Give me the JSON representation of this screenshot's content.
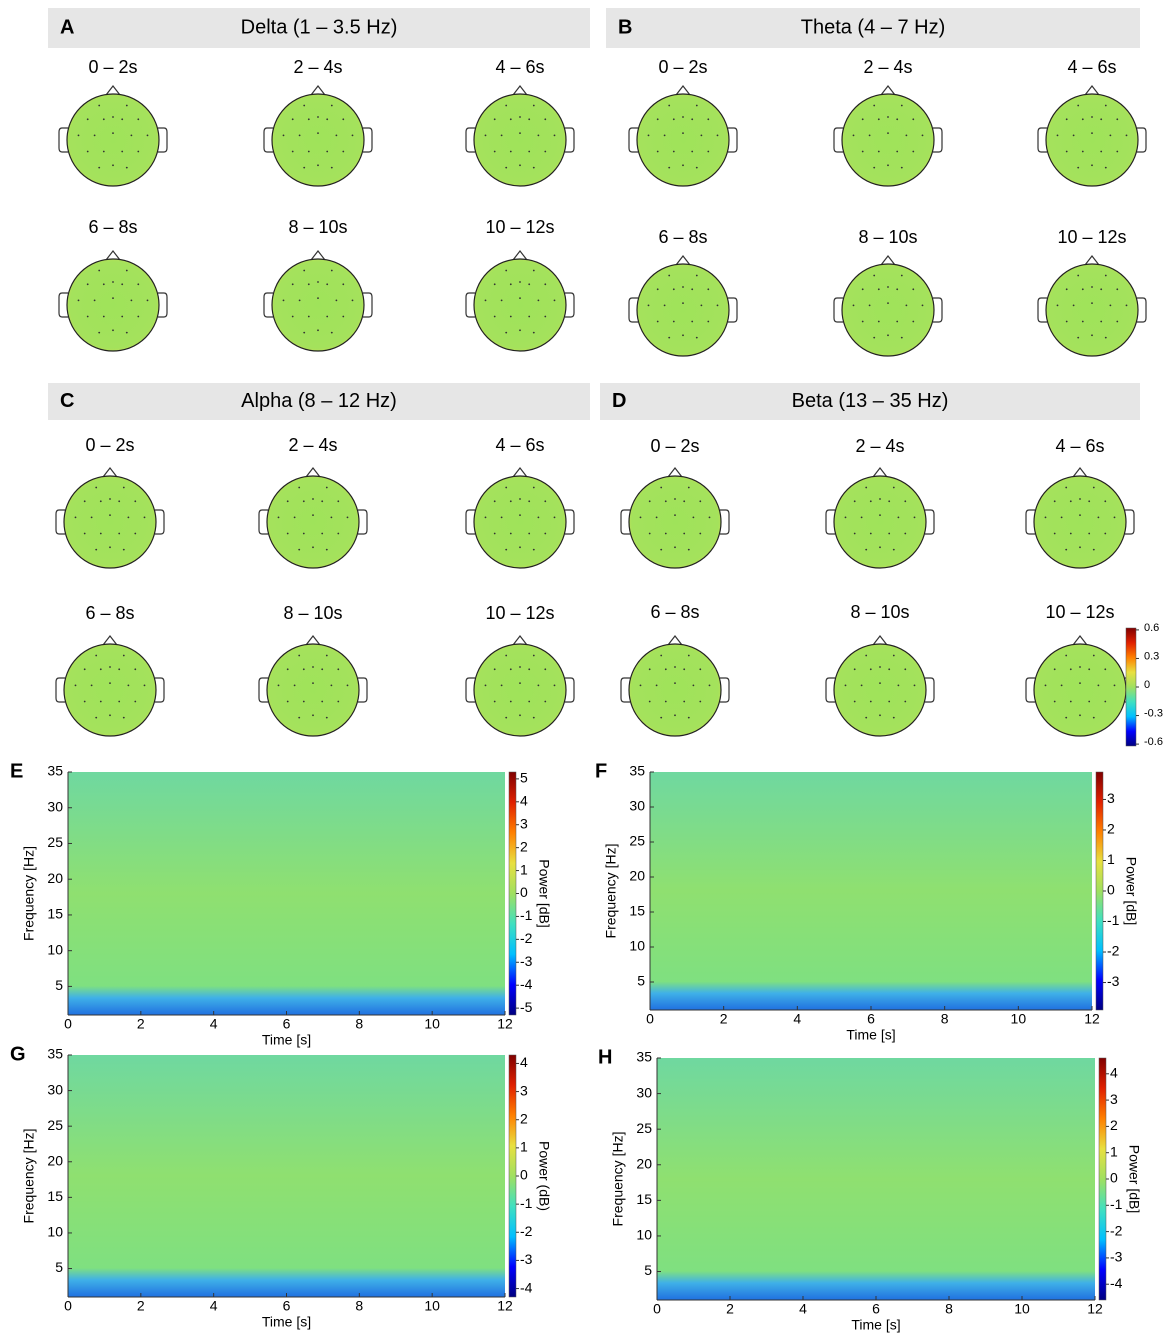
{
  "chart_data": [
    {
      "type": "topomap-grid",
      "panels": [
        {
          "letter": "A",
          "title": "Delta (1 – 3.5 Hz)",
          "labels": [
            "0 – 2s",
            "2 – 4s",
            "4 – 6s",
            "6 – 8s",
            "8 – 10s",
            "10 – 12s"
          ]
        },
        {
          "letter": "B",
          "title": "Theta (4 – 7 Hz)",
          "labels": [
            "0 – 2s",
            "2 – 4s",
            "4 – 6s",
            "6 – 8s",
            "8 – 10s",
            "10 – 12s"
          ]
        },
        {
          "letter": "C",
          "title": "Alpha (8 – 12 Hz)",
          "labels": [
            "0 – 2s",
            "2 – 4s",
            "4 – 6s",
            "6 – 8s",
            "8 – 10s",
            "10 – 12s"
          ]
        },
        {
          "letter": "D",
          "title": "Beta (13 – 35 Hz)",
          "labels": [
            "0 – 2s",
            "2 – 4s",
            "4 – 6s",
            "6 – 8s",
            "8 – 10s",
            "10 – 12s"
          ]
        }
      ],
      "clim": [
        -0.62,
        0.62
      ],
      "cticks": [
        0.6,
        0.3,
        0,
        -0.3,
        -0.6
      ],
      "colormap": [
        "#000080",
        "#0000ff",
        "#00bfff",
        "#40e0c0",
        "#a0e060",
        "#e8e040",
        "#ff8000",
        "#e02000",
        "#800000"
      ]
    },
    {
      "type": "spectrogram",
      "letter": "E",
      "ylabel": "Frequency [Hz]",
      "xlabel": "Time [s]",
      "xlim": [
        0,
        12
      ],
      "xticks": [
        0,
        2,
        4,
        6,
        8,
        10,
        12
      ],
      "ylim": [
        1,
        35
      ],
      "yticks": [
        5,
        10,
        15,
        20,
        25,
        30,
        35
      ],
      "clabel": "Power [dB]",
      "clim": [
        -5.3,
        5.3
      ],
      "cticks": [
        5,
        4,
        3,
        2,
        1,
        0,
        -1,
        -2,
        -3,
        -4,
        -5
      ]
    },
    {
      "type": "spectrogram",
      "letter": "F",
      "ylabel": "Frequency [Hz]",
      "xlabel": "Time [s]",
      "xlim": [
        0,
        12
      ],
      "xticks": [
        0,
        2,
        4,
        6,
        8,
        10,
        12
      ],
      "ylim": [
        1,
        35
      ],
      "yticks": [
        5,
        10,
        15,
        20,
        25,
        30,
        35
      ],
      "clabel": "Power [dB]",
      "clim": [
        -3.9,
        3.9
      ],
      "cticks": [
        3,
        2,
        1,
        0,
        -1,
        -2,
        -3
      ]
    },
    {
      "type": "spectrogram",
      "letter": "G",
      "ylabel": "Frequency [Hz]",
      "xlabel": "Time [s]",
      "xlim": [
        0,
        12
      ],
      "xticks": [
        0,
        2,
        4,
        6,
        8,
        10,
        12
      ],
      "ylim": [
        1,
        35
      ],
      "yticks": [
        5,
        10,
        15,
        20,
        25,
        30,
        35
      ],
      "clabel": "Power (dB)",
      "clim": [
        -4.3,
        4.3
      ],
      "cticks": [
        4,
        3,
        2,
        1,
        0,
        -1,
        -2,
        -3,
        -4
      ]
    },
    {
      "type": "spectrogram",
      "letter": "H",
      "ylabel": "Frequency [Hz]",
      "xlabel": "Time [s]",
      "xlim": [
        0,
        12
      ],
      "xticks": [
        0,
        2,
        4,
        6,
        8,
        10,
        12
      ],
      "ylim": [
        1,
        35
      ],
      "yticks": [
        5,
        10,
        15,
        20,
        25,
        30,
        35
      ],
      "clabel": "Power [dB]",
      "clim": [
        -4.6,
        4.6
      ],
      "cticks": [
        4,
        3,
        2,
        1,
        0,
        -1,
        -2,
        -3,
        -4
      ]
    }
  ]
}
